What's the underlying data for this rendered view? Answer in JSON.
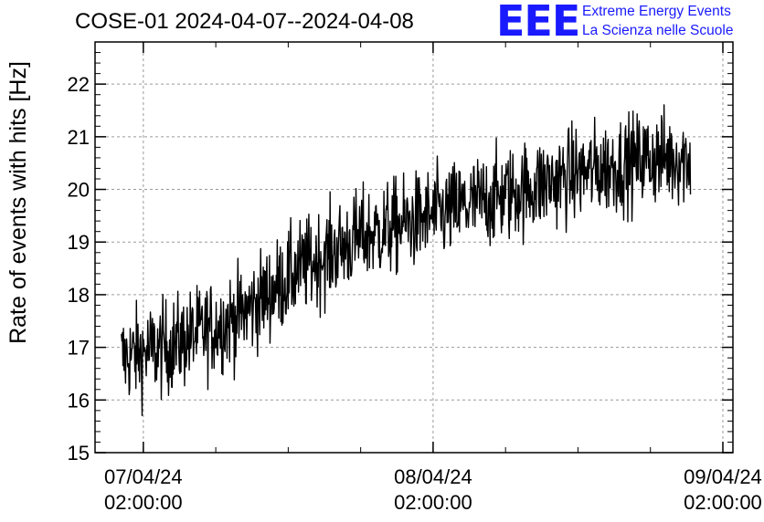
{
  "chart_data": {
    "type": "line",
    "title": "COSE-01 2024-04-07--2024-04-08",
    "ylabel": "Rate of events with hits [Hz]",
    "xlabel": "",
    "ylim": [
      15,
      22.8
    ],
    "xlim": [
      "2024-04-06 22:00:00",
      "2024-04-09 02:50:00"
    ],
    "y_ticks": [
      15,
      16,
      17,
      18,
      19,
      20,
      21,
      22
    ],
    "x_ticks": [
      {
        "value": "2024-04-07 02:00:00",
        "label_date": "07/04/24",
        "label_time": "02:00:00"
      },
      {
        "value": "2024-04-08 02:00:00",
        "label_date": "08/04/24",
        "label_time": "02:00:00"
      },
      {
        "value": "2024-04-09 02:00:00",
        "label_date": "09/04/24",
        "label_time": "02:00:00"
      }
    ],
    "grid": true,
    "series": [
      {
        "color": "#000000",
        "data_start": "2024-04-07 00:11:00",
        "data_end": "2024-04-08 23:19:00",
        "trend": [
          {
            "x": "2024-04-07 00:11:00",
            "y": 16.8
          },
          {
            "x": "2024-04-07 04:00:00",
            "y": 17.0
          },
          {
            "x": "2024-04-07 10:00:00",
            "y": 17.6
          },
          {
            "x": "2024-04-07 15:00:00",
            "y": 18.5
          },
          {
            "x": "2024-04-07 20:00:00",
            "y": 19.1
          },
          {
            "x": "2024-04-08 02:00:00",
            "y": 19.5
          },
          {
            "x": "2024-04-08 08:00:00",
            "y": 19.9
          },
          {
            "x": "2024-04-08 14:00:00",
            "y": 20.3
          },
          {
            "x": "2024-04-08 20:00:00",
            "y": 20.6
          },
          {
            "x": "2024-04-08 23:19:00",
            "y": 20.6
          }
        ],
        "noise_amplitude": 0.45,
        "sample_count": 1100
      }
    ]
  },
  "logo": {
    "mark": "EEE",
    "line1": "Extreme Energy Events",
    "line2": "La Scienza nelle Scuole",
    "color": "#1a1aff"
  }
}
